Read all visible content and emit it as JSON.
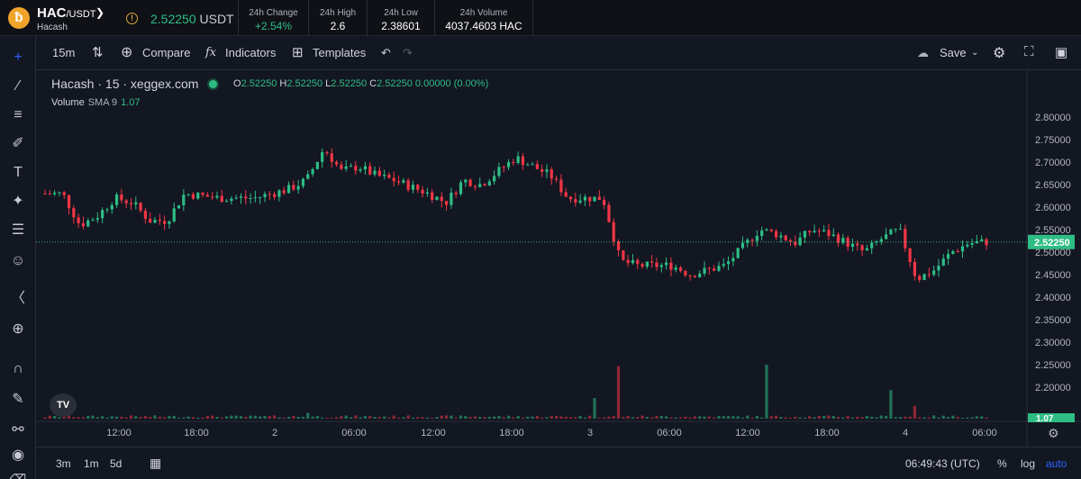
{
  "header": {
    "symbol": "HAC",
    "quote": "/USDT",
    "name": "Hacash",
    "price": "2.52250",
    "price_unit": "USDT",
    "stats": [
      {
        "label": "24h Change",
        "value": "+2.54%",
        "color": "#2ebd85"
      },
      {
        "label": "24h High",
        "value": "2.6",
        "color": "#ffffff"
      },
      {
        "label": "24h Low",
        "value": "2.38601",
        "color": "#ffffff"
      },
      {
        "label": "24h Volume",
        "value": "4037.4603 HAC",
        "color": "#ffffff"
      }
    ]
  },
  "toolbar": {
    "interval": "15m",
    "compare": "Compare",
    "indicators": "Indicators",
    "templates": "Templates",
    "save": "Save"
  },
  "legend": {
    "title": "Hacash · 15 · xeggex.com",
    "o_key": "O",
    "o": "2.52250",
    "h_key": "H",
    "h": "2.52250",
    "l_key": "L",
    "l": "2.52250",
    "c_key": "C",
    "c": "2.52250",
    "change": "0.00000 (0.00%)",
    "volume_label": "Volume",
    "volume_sma": "SMA 9",
    "volume_value": "1.07"
  },
  "bottom": {
    "ranges": [
      "3m",
      "1m",
      "5d"
    ],
    "clock": "06:49:43 (UTC)",
    "pct": "%",
    "log": "log",
    "auto": "auto"
  },
  "colors": {
    "up": "#2ebd85",
    "down": "#f23645",
    "background": "#131722",
    "accent": "#2962ff"
  },
  "chart_data": {
    "type": "candlestick",
    "symbol": "Hacash",
    "interval": "15",
    "ylim": [
      2.178,
      2.818
    ],
    "y_ticks": [
      2.8,
      2.75,
      2.7,
      2.65,
      2.6,
      2.55,
      2.5,
      2.45,
      2.4,
      2.35,
      2.3,
      2.25,
      2.2
    ],
    "x_ticks": [
      "12:00",
      "18:00",
      "2",
      "06:00",
      "12:00",
      "18:00",
      "3",
      "06:00",
      "12:00",
      "18:00",
      "4",
      "06:00"
    ],
    "last_price": "2.52250",
    "last_volume": "1.07",
    "price_anchors": [
      [
        0,
        2.63
      ],
      [
        2,
        2.63
      ],
      [
        4,
        2.56
      ],
      [
        6,
        2.58
      ],
      [
        8,
        2.62
      ],
      [
        10,
        2.61
      ],
      [
        12,
        2.57
      ],
      [
        14,
        2.57
      ],
      [
        16,
        2.63
      ],
      [
        20,
        2.62
      ],
      [
        24,
        2.62
      ],
      [
        28,
        2.64
      ],
      [
        30,
        2.66
      ],
      [
        32,
        2.73
      ],
      [
        34,
        2.68
      ],
      [
        36,
        2.69
      ],
      [
        38,
        2.67
      ],
      [
        40,
        2.66
      ],
      [
        44,
        2.63
      ],
      [
        46,
        2.61
      ],
      [
        48,
        2.66
      ],
      [
        50,
        2.65
      ],
      [
        52,
        2.68
      ],
      [
        54,
        2.71
      ],
      [
        56,
        2.69
      ],
      [
        58,
        2.67
      ],
      [
        60,
        2.62
      ],
      [
        64,
        2.62
      ],
      [
        66,
        2.48
      ],
      [
        68,
        2.47
      ],
      [
        72,
        2.47
      ],
      [
        74,
        2.45
      ],
      [
        76,
        2.46
      ],
      [
        78,
        2.47
      ],
      [
        80,
        2.51
      ],
      [
        82,
        2.55
      ],
      [
        84,
        2.54
      ],
      [
        86,
        2.52
      ],
      [
        88,
        2.55
      ],
      [
        90,
        2.54
      ],
      [
        92,
        2.52
      ],
      [
        94,
        2.5
      ],
      [
        96,
        2.53
      ],
      [
        98,
        2.55
      ],
      [
        100,
        2.44
      ],
      [
        102,
        2.46
      ],
      [
        104,
        2.5
      ],
      [
        106,
        2.52
      ],
      [
        108,
        2.5225
      ]
    ],
    "volume_spikes": [
      [
        30,
        0.25
      ],
      [
        63,
        1.0
      ],
      [
        66,
        2.6
      ],
      [
        83,
        3.3
      ],
      [
        97,
        1.4
      ],
      [
        100,
        0.6
      ]
    ]
  }
}
